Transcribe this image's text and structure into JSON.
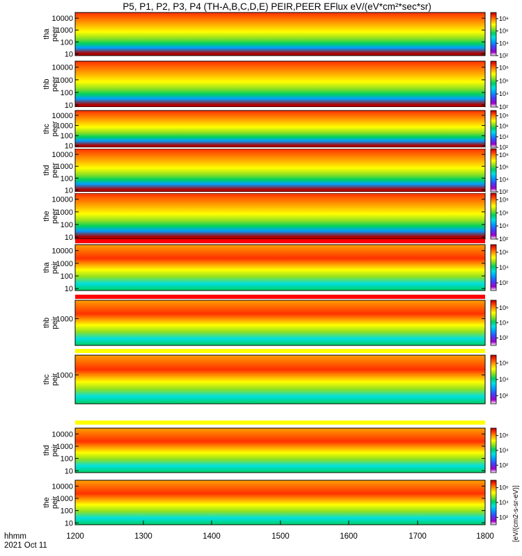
{
  "chart_data": {
    "type": "heatmap",
    "title": "P5, P1, P2, P3, P4 (TH-A,B,C,D,E) PEIR,PEER EFlux eV/(eV*cm²*sec*sr)",
    "x_label": "hhmm",
    "date_label": "2021 Oct 11",
    "x_ticks": [
      "1200",
      "1300",
      "1400",
      "1500",
      "1600",
      "1700",
      "1800"
    ],
    "colorbar_unit": "[eV/(cm2-s-sr-eV)]",
    "colors": {
      "scale": [
        "#ffffff",
        "#a000c8",
        "#4040ff",
        "#00a0ff",
        "#00e0e0",
        "#00d060",
        "#90e020",
        "#ffff00",
        "#ffa000",
        "#ff3000",
        "#b00000"
      ],
      "bg": "#ffffff",
      "frame": "#000000"
    },
    "panels": [
      {
        "id": "tha-peer",
        "probe": "tha",
        "species": "peer",
        "y_ticks": [
          "10",
          "100",
          "1000",
          "10000"
        ],
        "y_range": [
          7,
          30000
        ],
        "cb_ticks": [
          "10²",
          "10⁴",
          "10⁶",
          "10⁸"
        ],
        "cb_range": [
          100,
          1000000000
        ]
      },
      {
        "id": "thb-peer",
        "probe": "thb",
        "species": "peer",
        "y_ticks": [
          "10",
          "100",
          "1000",
          "10000"
        ],
        "y_range": [
          7,
          30000
        ],
        "cb_ticks": [
          "10²",
          "10⁴",
          "10⁶",
          "10⁸"
        ],
        "cb_range": [
          100,
          1000000000
        ]
      },
      {
        "id": "thc-peer",
        "probe": "thc",
        "species": "peer",
        "y_ticks": [
          "10",
          "100",
          "1000",
          "10000"
        ],
        "y_range": [
          7,
          30000
        ],
        "cb_ticks": [
          "10²",
          "10⁴",
          "10⁶",
          "10⁸"
        ],
        "cb_range": [
          100,
          1000000000
        ]
      },
      {
        "id": "thd-peer",
        "probe": "thd",
        "species": "peer",
        "y_ticks": [
          "10",
          "100",
          "1000",
          "10000"
        ],
        "y_range": [
          7,
          30000
        ],
        "cb_ticks": [
          "10²",
          "10⁴",
          "10⁶",
          "10⁸"
        ],
        "cb_range": [
          100,
          1000000000
        ]
      },
      {
        "id": "the-peer",
        "probe": "the",
        "species": "peer",
        "y_ticks": [
          "10",
          "100",
          "1000",
          "10000"
        ],
        "y_range": [
          7,
          30000
        ],
        "cb_ticks": [
          "10²",
          "10⁴",
          "10⁶",
          "10⁸"
        ],
        "cb_range": [
          100,
          1000000000
        ]
      },
      {
        "id": "tha-peir",
        "probe": "tha",
        "species": "peir",
        "y_ticks": [
          "10",
          "100",
          "1000",
          "10000"
        ],
        "y_range": [
          7,
          30000
        ],
        "cb_ticks": [
          "10²",
          "10⁴",
          "10⁶"
        ],
        "cb_range": [
          10,
          10000000
        ]
      },
      {
        "id": "thb-peir",
        "probe": "thb",
        "species": "peir",
        "y_ticks": [
          "1000"
        ],
        "y_range": [
          7,
          30000
        ],
        "cb_ticks": [
          "10²",
          "10⁴",
          "10⁶"
        ],
        "cb_range": [
          10,
          10000000
        ]
      },
      {
        "id": "thc-peir",
        "probe": "thc",
        "species": "peir",
        "y_ticks": [
          "1000"
        ],
        "y_range": [
          7,
          30000
        ],
        "cb_ticks": [
          "10²",
          "10⁴",
          "10⁶"
        ],
        "cb_range": [
          10,
          10000000
        ]
      },
      {
        "id": "thd-peir",
        "probe": "thd",
        "species": "peir",
        "y_ticks": [
          "10",
          "100",
          "1000",
          "10000"
        ],
        "y_range": [
          7,
          30000
        ],
        "cb_ticks": [
          "10²",
          "10⁴",
          "10⁶"
        ],
        "cb_range": [
          10,
          10000000
        ]
      },
      {
        "id": "the-peir",
        "probe": "the",
        "species": "peir",
        "y_ticks": [
          "10",
          "100",
          "1000",
          "10000"
        ],
        "y_range": [
          7,
          30000
        ],
        "cb_ticks": [
          "10²",
          "10⁴",
          "10⁶"
        ],
        "cb_range": [
          10,
          10000000
        ]
      }
    ],
    "flag_bars": [
      {
        "segments": [
          {
            "from": "1200",
            "to": "1800",
            "color": "#ffffff"
          }
        ]
      },
      {
        "segments": [
          {
            "from": "1200",
            "to": "1800",
            "color": "#ffffff"
          }
        ]
      },
      {
        "segments": [
          {
            "from": "1200",
            "to": "1800",
            "color": "#ffffff"
          }
        ]
      },
      {
        "segments": [
          {
            "from": "1200",
            "to": "1800",
            "color": "#ffffff"
          }
        ]
      },
      {
        "segments": [
          {
            "from": "1200",
            "to": "1800",
            "color": "#ffffff"
          }
        ]
      },
      {
        "segments": [
          {
            "from": "1200",
            "to": "1800",
            "color": "#ff0000"
          }
        ]
      },
      {
        "segments": [
          {
            "from": "1200",
            "to": "1800",
            "color": "#ff0000"
          }
        ]
      },
      {
        "segments": [
          {
            "from": "1200",
            "to": "1800",
            "color": "#ffff00"
          }
        ]
      },
      {
        "segments": [
          {
            "from": "1200",
            "to": "1800",
            "color": "#ffff00"
          }
        ]
      },
      {
        "segments": [
          {
            "from": "1200",
            "to": "1620",
            "color": "#ffff00"
          },
          {
            "from": "1620",
            "to": "1800",
            "color": "#ff0000"
          }
        ]
      }
    ]
  }
}
